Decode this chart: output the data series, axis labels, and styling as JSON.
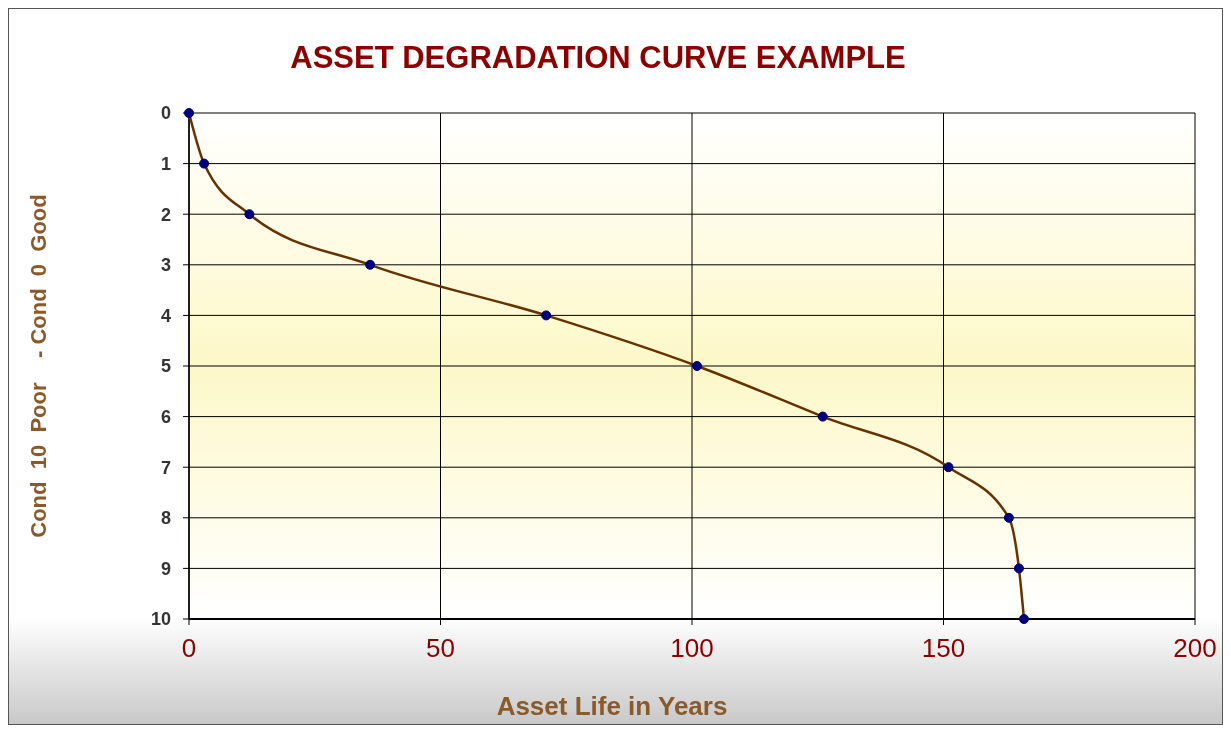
{
  "chart_data": {
    "type": "line",
    "title": "ASSET DEGRADATION CURVE EXAMPLE",
    "xlabel": "Asset Life in Years",
    "ylabel": "Cond  10  Poor    - Cond  0  Good",
    "x": [
      0,
      3,
      12,
      36,
      71,
      101,
      126,
      151,
      163,
      165,
      166
    ],
    "series": [
      {
        "color": "#663300",
        "values": [
          0,
          1,
          2,
          3,
          4,
          5,
          6,
          7,
          8,
          9,
          10
        ]
      }
    ],
    "xlim": [
      0,
      200
    ],
    "xticks": [
      0,
      50,
      100,
      150,
      200
    ],
    "ylim": [
      10,
      0
    ],
    "yticks": [
      0,
      1,
      2,
      3,
      4,
      5,
      6,
      7,
      8,
      9,
      10
    ],
    "grid": true,
    "marker": "circle",
    "line_style": "solid"
  }
}
